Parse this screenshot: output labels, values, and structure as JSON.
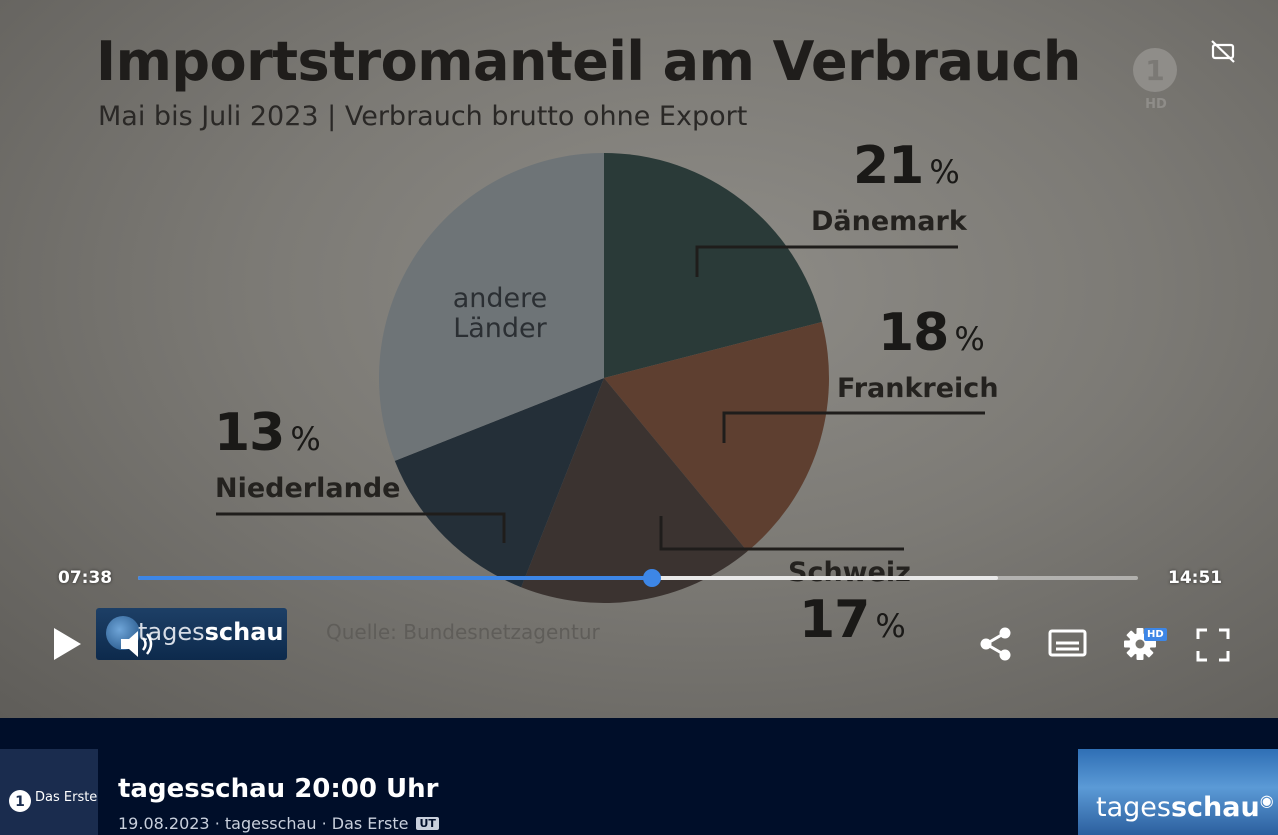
{
  "chart": {
    "title": "Importstromanteil am Verbrauch",
    "subtitle": "Mai bis Juli 2023 | Verbrauch brutto ohne Export",
    "source": "Quelle: Bundesnetzagentur"
  },
  "chart_data": {
    "type": "pie",
    "title": "Importstromanteil am Verbrauch",
    "subtitle": "Mai bis Juli 2023 | Verbrauch brutto ohne Export",
    "unit": "%",
    "slices": [
      {
        "label": "Dänemark",
        "value": 21,
        "color": "#2a3a38"
      },
      {
        "label": "Frankreich",
        "value": 18,
        "color": "#5e3f30"
      },
      {
        "label": "Schweiz",
        "value": 17,
        "color": "#3b3330"
      },
      {
        "label": "Niederlande",
        "value": 13,
        "color": "#242f38"
      },
      {
        "label": "andere Länder",
        "value": 31,
        "color": "#6e7477"
      }
    ],
    "labels": {
      "daenemark": {
        "value": "21",
        "unit": "%",
        "name": "Dänemark"
      },
      "frankreich": {
        "value": "18",
        "unit": "%",
        "name": "Frankreich"
      },
      "schweiz": {
        "value": "17",
        "unit": "%",
        "name": "Schweiz"
      },
      "niederlande": {
        "value": "13",
        "unit": "%",
        "name": "Niederlande"
      },
      "andere_line1": "andere",
      "andere_line2": "Länder"
    },
    "source": "Quelle: Bundesnetzagentur"
  },
  "video_overlay": {
    "ard_logo": "1",
    "ard_hd": "HD",
    "tagesschau_badge_prefix": "tages",
    "tagesschau_badge_suffix": "schau"
  },
  "player": {
    "current_time": "07:38",
    "total_time": "14:51",
    "played_fraction": 0.514,
    "buffered_fraction": 0.86,
    "settings_badge": "HD",
    "icons": {
      "play": "play-icon",
      "volume": "volume-icon",
      "share": "share-icon",
      "subtitles": "subtitles-icon",
      "settings": "gear-icon",
      "fullscreen": "fullscreen-icon",
      "cc_off": "captions-off-icon"
    },
    "colors": {
      "accent": "#3d86e6"
    }
  },
  "info": {
    "channel_label": "Das Erste",
    "show_title": "tagesschau 20:00 Uhr",
    "meta": "19.08.2023 · tagesschau · Das Erste",
    "ut_badge": "UT",
    "thumb_prefix": "tages",
    "thumb_suffix": "schau"
  }
}
